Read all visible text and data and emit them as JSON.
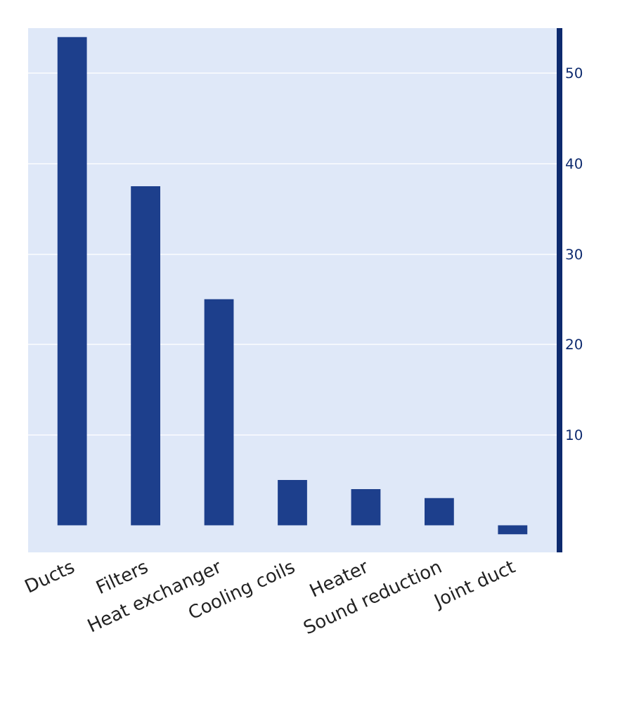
{
  "chart_data": {
    "type": "bar",
    "categories": [
      "Ducts",
      "Filters",
      "Heat exchanger",
      "Cooling coils",
      "Heater",
      "Sound reduction",
      "Joint duct"
    ],
    "values": [
      54,
      37.5,
      25,
      5,
      4,
      3,
      -1
    ],
    "color": "#1d3f8c",
    "ylim": [
      -3,
      55
    ],
    "yticks": [
      10,
      20,
      30,
      40,
      50
    ],
    "grid": "y"
  }
}
